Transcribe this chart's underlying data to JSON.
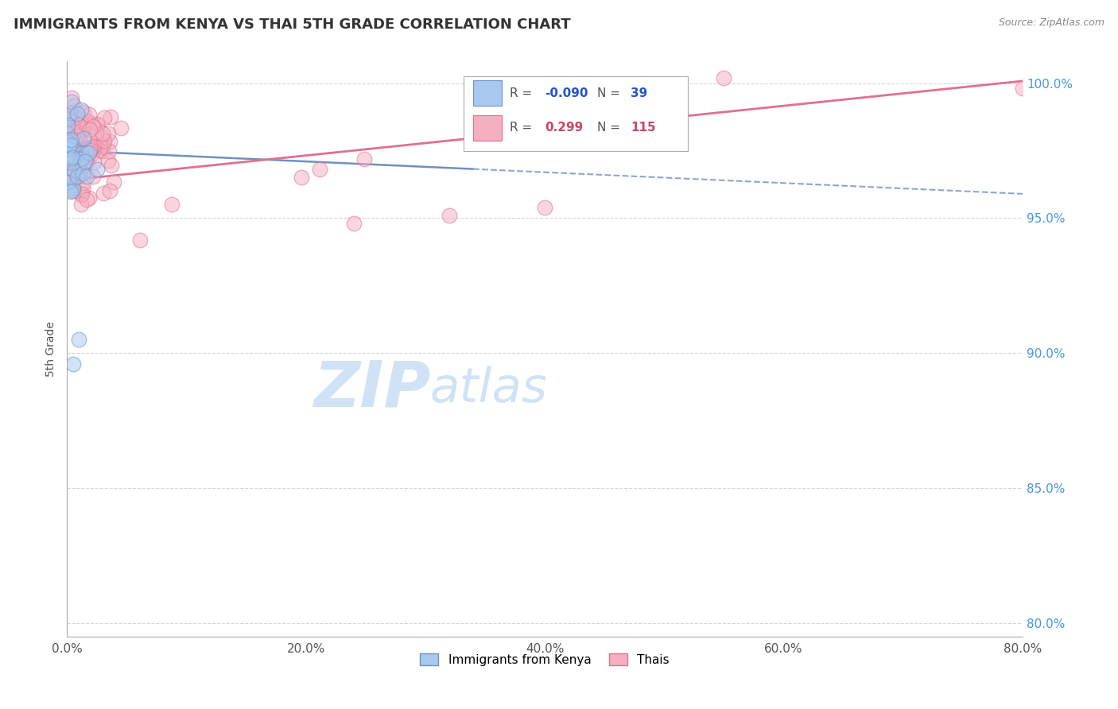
{
  "title": "IMMIGRANTS FROM KENYA VS THAI 5TH GRADE CORRELATION CHART",
  "source": "Source: ZipAtlas.com",
  "ylabel": "5th Grade",
  "xlim": [
    0.0,
    0.8
  ],
  "ylim": [
    0.795,
    1.008
  ],
  "xtick_labels": [
    "0.0%",
    "20.0%",
    "40.0%",
    "60.0%",
    "80.0%"
  ],
  "xtick_vals": [
    0.0,
    0.2,
    0.4,
    0.6,
    0.8
  ],
  "ytick_labels": [
    "80.0%",
    "85.0%",
    "90.0%",
    "95.0%",
    "100.0%"
  ],
  "ytick_vals": [
    0.8,
    0.85,
    0.9,
    0.95,
    1.0
  ],
  "kenya_color": "#a8c8f0",
  "thai_color": "#f5afc0",
  "kenya_edge": "#7090c0",
  "thai_edge": "#e07090",
  "kenya_R": -0.09,
  "kenya_N": 39,
  "thai_R": 0.299,
  "thai_N": 115,
  "legend_kenya_label": "Immigrants from Kenya",
  "legend_thai_label": "Thais",
  "background_color": "#ffffff",
  "grid_color": "#cccccc",
  "title_fontsize": 13,
  "watermark_text1": "ZIP",
  "watermark_text2": "atlas",
  "watermark_color1": "#c8dff5",
  "watermark_color2": "#c8dff5"
}
